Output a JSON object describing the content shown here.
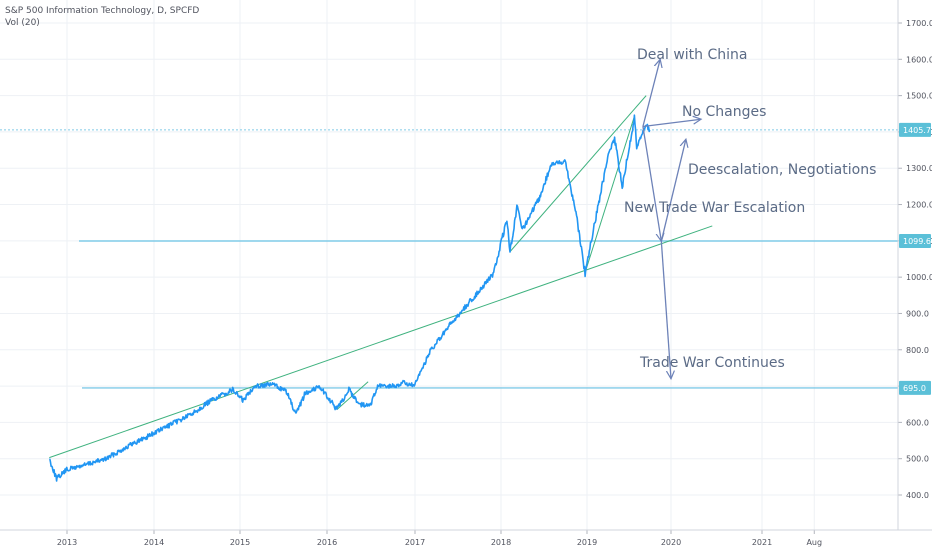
{
  "header": {
    "symbol_line": "S&P 500 Information Technology, D, SPCFD",
    "volume_line": "Vol (20)"
  },
  "colors": {
    "price_line": "#2196f3",
    "trend_line": "#3fb27f",
    "hline": "#80cbe8",
    "arrow": "#6d82b8",
    "annotation_text": "#5b6b86",
    "grid": "#eef1f5",
    "axis_text": "#50535e",
    "badge_bg": "#5bc0d8"
  },
  "chart_data": {
    "type": "line",
    "title": "S&P 500 Information Technology, D, SPCFD",
    "ylim": [
      350,
      1750
    ],
    "xlim": [
      "2012-09-01",
      "2021-12-31"
    ],
    "y_ticks": [
      "400.0",
      "500.0",
      "600.0",
      "700.0",
      "800.0",
      "900.0",
      "1000.0",
      "1100.0",
      "1200.0",
      "1300.0",
      "1400.0",
      "1500.0",
      "1600.0",
      "1700.0"
    ],
    "x_ticks": [
      {
        "label": "2013",
        "date": "2013-01-01"
      },
      {
        "label": "2014",
        "date": "2014-01-01"
      },
      {
        "label": "2015",
        "date": "2015-01-01"
      },
      {
        "label": "2016",
        "date": "2016-01-01"
      },
      {
        "label": "2017",
        "date": "2017-01-01"
      },
      {
        "label": "2018",
        "date": "2018-01-01"
      },
      {
        "label": "2019",
        "date": "2019-01-01"
      },
      {
        "label": "2020",
        "date": "2020-01-01"
      },
      {
        "label": "2021",
        "date": "2021-01-01"
      },
      {
        "label": "Aug",
        "date": "2021-08-01"
      }
    ],
    "grid": true,
    "series": [
      {
        "x": [
          "2012-10-15",
          "2012-11-16",
          "2012-12-31",
          "2013-03-01",
          "2013-06-15",
          "2013-09-01",
          "2013-12-31",
          "2014-03-01",
          "2014-06-01",
          "2014-09-01",
          "2014-12-01",
          "2015-01-15",
          "2015-03-01",
          "2015-05-20",
          "2015-07-15",
          "2015-08-24",
          "2015-10-01",
          "2015-12-01",
          "2016-02-11",
          "2016-04-01",
          "2016-05-15",
          "2016-06-27",
          "2016-08-01",
          "2016-10-15",
          "2016-11-10",
          "2016-12-31",
          "2017-03-01",
          "2017-06-01",
          "2017-09-01",
          "2017-12-01",
          "2018-01-26",
          "2018-02-08",
          "2018-03-12",
          "2018-04-02",
          "2018-06-15",
          "2018-08-01",
          "2018-10-01",
          "2018-10-29",
          "2018-11-15",
          "2018-12-24",
          "2019-02-01",
          "2019-04-01",
          "2019-05-01",
          "2019-06-03",
          "2019-07-26",
          "2019-08-05",
          "2019-08-25",
          "2019-09-15",
          "2019-10-01"
        ],
        "values": [
          500,
          445,
          470,
          480,
          500,
          530,
          570,
          590,
          620,
          660,
          690,
          660,
          700,
          705,
          685,
          620,
          680,
          700,
          635,
          690,
          650,
          645,
          700,
          700,
          710,
          700,
          790,
          870,
          940,
          1010,
          1160,
          1070,
          1200,
          1130,
          1220,
          1310,
          1320,
          1230,
          1180,
          1010,
          1140,
          1330,
          1380,
          1250,
          1440,
          1360,
          1390,
          1420,
          1405
        ]
      }
    ],
    "price_badges": [
      "1405.7",
      "1099.6",
      "695.0"
    ],
    "horizontal_levels": [
      1405.7,
      1099.6,
      695.0
    ],
    "trendlines": [
      {
        "from": {
          "date": "2012-10-15",
          "value": 503
        },
        "to": {
          "date": "2020-06-15",
          "value": 1141
        }
      },
      {
        "from": {
          "date": "2016-02-11",
          "value": 635
        },
        "to": {
          "date": "2016-06-20",
          "value": 712
        }
      },
      {
        "from": {
          "date": "2018-02-08",
          "value": 1070
        },
        "to": {
          "date": "2019-09-15",
          "value": 1500
        }
      },
      {
        "from": {
          "date": "2018-12-24",
          "value": 1013
        },
        "to": {
          "date": "2019-07-26",
          "value": 1443
        }
      }
    ],
    "annotations": [
      {
        "text": "Deal with China"
      },
      {
        "text": "No Changes"
      },
      {
        "text": "Deescalation, Negotiations"
      },
      {
        "text": "New Trade War Escalation"
      },
      {
        "text": "Trade War Continues"
      }
    ],
    "arrows": [
      {
        "from": {
          "date": "2019-09-01",
          "value": 1415
        },
        "to": {
          "date": "2019-11-15",
          "value": 1600
        }
      },
      {
        "from": {
          "date": "2019-09-01",
          "value": 1415
        },
        "to": {
          "date": "2020-05-01",
          "value": 1435
        }
      },
      {
        "from": {
          "date": "2019-09-01",
          "value": 1415
        },
        "to": {
          "date": "2019-11-20",
          "value": 1099
        }
      },
      {
        "from": {
          "date": "2019-11-20",
          "value": 1099
        },
        "to": {
          "date": "2020-03-01",
          "value": 1380
        }
      },
      {
        "from": {
          "date": "2019-11-20",
          "value": 1099
        },
        "to": {
          "date": "2020-01-01",
          "value": 720
        }
      }
    ]
  }
}
